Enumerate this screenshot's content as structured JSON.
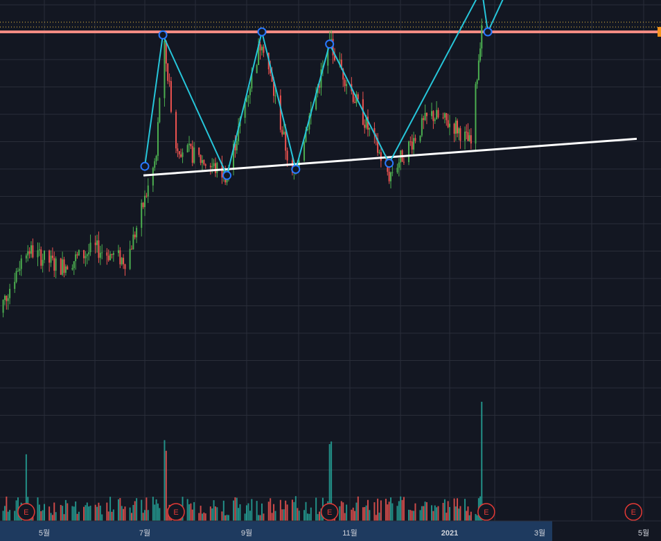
{
  "colors": {
    "background": "#131722",
    "grid": "#2a2e39",
    "up": "#26a69a",
    "down": "#ef5350",
    "candle_up": "#4caf50",
    "candle_down": "#ef5350",
    "zigzag": "#26c6da",
    "point_fill": "#131722",
    "point_stroke": "#2979ff",
    "support": "#ffffff",
    "resistance": "#f28b82",
    "dotted": "#f5c542",
    "price_marker": "#f7931a",
    "timescale_highlight": "#1e3a5f",
    "axis_text": "#d1d4dc",
    "earnings": "#e53935"
  },
  "chart_data": {
    "type": "candlestick",
    "x_axis": {
      "tick_labels": [
        "5월",
        "7월",
        "9월",
        "11월",
        "2021",
        "3월",
        "5월"
      ],
      "bold_label": "2021",
      "range": [
        "2020-04-01",
        "2021-05-15"
      ]
    },
    "y_axis": {
      "visible_labels": false
    },
    "price_trend": {
      "description_points": [
        [
          "2020-04-01",
          0.04
        ],
        [
          "2020-04-20",
          0.28
        ],
        [
          "2020-05-10",
          0.22
        ],
        [
          "2020-06-01",
          0.28
        ],
        [
          "2020-06-20",
          0.24
        ],
        [
          "2020-07-01",
          0.44
        ],
        [
          "2020-07-08",
          0.58
        ],
        [
          "2020-07-12",
          0.98
        ],
        [
          "2020-07-20",
          0.62
        ],
        [
          "2020-08-20",
          0.52
        ],
        [
          "2020-09-10",
          0.97
        ],
        [
          "2020-09-28",
          0.51
        ],
        [
          "2020-10-20",
          0.95
        ],
        [
          "2020-11-25",
          0.52
        ],
        [
          "2020-12-20",
          0.72
        ],
        [
          "2021-01-05",
          0.68
        ],
        [
          "2021-01-15",
          0.62
        ],
        [
          "2021-01-22",
          1.02
        ]
      ]
    },
    "zigzag": [
      [
        "2020-07-01",
        0.55
      ],
      [
        "2020-07-12",
        0.98
      ],
      [
        "2020-08-20",
        0.52
      ],
      [
        "2020-09-10",
        0.99
      ],
      [
        "2020-09-30",
        0.54
      ],
      [
        "2020-10-20",
        0.95
      ],
      [
        "2020-11-25",
        0.56
      ],
      [
        "2021-01-22",
        1.13
      ],
      [
        "2021-01-26",
        0.99
      ],
      [
        "2021-02-08",
        1.13
      ]
    ],
    "support_line": [
      [
        "2020-07-01",
        0.52
      ],
      [
        "2021-05-01",
        0.64
      ]
    ],
    "resistance_level": 0.99,
    "earnings_dates": [
      "2020-04-20",
      "2020-07-20",
      "2020-10-20",
      "2021-01-25",
      "2021-04-25"
    ],
    "volume_spike_date": "2021-01-22"
  },
  "earnings": {
    "label": "E"
  }
}
